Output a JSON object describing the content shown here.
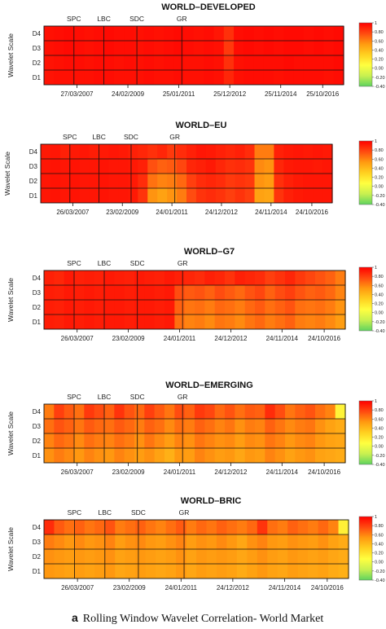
{
  "caption": {
    "label": "a",
    "text": "Rolling Window Wavelet Correlation- World Market"
  },
  "colors": {
    "scale_stops": [
      "#5fd35f",
      "#c8f050",
      "#ffff40",
      "#ffd020",
      "#ff9a10",
      "#ff4a10",
      "#ff0000"
    ]
  },
  "chart_data": [
    {
      "type": "heatmap",
      "title": "WORLD–DEVELOPED",
      "ylabel": "Wavelet Scale",
      "rows": [
        "D4",
        "D3",
        "D2",
        "D1"
      ],
      "events": [
        "SPC",
        "LBC",
        "SDC",
        "GR"
      ],
      "xticks": [
        "27/03/2007",
        "24/02/2009",
        "25/01/2011",
        "25/12/2012",
        "25/11/2014",
        "25/10/2016"
      ],
      "colorbar_ticks": [
        "1",
        "0.80",
        "0.60",
        "0.40",
        "0.20",
        "0.00",
        "-0.20",
        "-0.40"
      ],
      "values": [
        [
          0.95,
          0.96,
          0.97,
          0.96,
          0.95,
          0.96,
          0.97,
          0.96,
          0.96,
          0.95,
          0.96,
          0.95,
          0.96,
          0.97,
          0.96,
          0.95,
          0.96,
          0.93,
          0.85,
          0.96,
          0.97,
          0.96,
          0.97,
          0.96,
          0.97,
          0.97,
          0.96,
          0.97,
          0.96,
          0.97
        ],
        [
          0.95,
          0.96,
          0.97,
          0.96,
          0.95,
          0.96,
          0.97,
          0.96,
          0.96,
          0.95,
          0.96,
          0.95,
          0.96,
          0.97,
          0.96,
          0.95,
          0.96,
          0.95,
          0.82,
          0.96,
          0.97,
          0.96,
          0.97,
          0.96,
          0.97,
          0.97,
          0.96,
          0.97,
          0.96,
          0.97
        ],
        [
          0.94,
          0.95,
          0.96,
          0.96,
          0.95,
          0.96,
          0.96,
          0.95,
          0.96,
          0.95,
          0.96,
          0.95,
          0.96,
          0.96,
          0.95,
          0.95,
          0.96,
          0.95,
          0.85,
          0.95,
          0.96,
          0.96,
          0.96,
          0.96,
          0.97,
          0.96,
          0.96,
          0.96,
          0.96,
          0.97
        ],
        [
          0.94,
          0.95,
          0.95,
          0.95,
          0.95,
          0.96,
          0.96,
          0.95,
          0.95,
          0.95,
          0.96,
          0.95,
          0.95,
          0.96,
          0.95,
          0.95,
          0.96,
          0.95,
          0.88,
          0.95,
          0.96,
          0.96,
          0.96,
          0.95,
          0.96,
          0.96,
          0.96,
          0.96,
          0.95,
          0.96
        ]
      ]
    },
    {
      "type": "heatmap",
      "title": "WORLD–EU",
      "ylabel": "Wavelet Scale",
      "rows": [
        "D4",
        "D3",
        "D2",
        "D1"
      ],
      "events": [
        "SPC",
        "LBC",
        "SDC",
        "GR"
      ],
      "xticks": [
        "26/03/2007",
        "23/02/2009",
        "24/01/2011",
        "24/12/2012",
        "24/11/2014",
        "24/10/2016"
      ],
      "colorbar_ticks": [
        "1",
        "0.80",
        "0.60",
        "0.40",
        "0.20",
        "0.00",
        "-0.20",
        "-0.40"
      ],
      "values": [
        [
          0.92,
          0.93,
          0.9,
          0.92,
          0.93,
          0.91,
          0.92,
          0.93,
          0.92,
          0.9,
          0.88,
          0.85,
          0.88,
          0.82,
          0.86,
          0.9,
          0.93,
          0.92,
          0.9,
          0.88,
          0.9,
          0.86,
          0.62,
          0.62,
          0.9,
          0.92,
          0.93,
          0.92,
          0.93,
          0.92
        ],
        [
          0.93,
          0.94,
          0.93,
          0.94,
          0.93,
          0.93,
          0.94,
          0.93,
          0.93,
          0.92,
          0.9,
          0.75,
          0.7,
          0.72,
          0.78,
          0.88,
          0.9,
          0.92,
          0.88,
          0.85,
          0.86,
          0.84,
          0.58,
          0.55,
          0.88,
          0.92,
          0.93,
          0.93,
          0.92,
          0.93
        ],
        [
          0.93,
          0.94,
          0.93,
          0.94,
          0.93,
          0.93,
          0.94,
          0.93,
          0.93,
          0.92,
          0.86,
          0.65,
          0.6,
          0.62,
          0.68,
          0.8,
          0.86,
          0.88,
          0.86,
          0.82,
          0.84,
          0.82,
          0.55,
          0.52,
          0.85,
          0.9,
          0.92,
          0.93,
          0.93,
          0.93
        ],
        [
          0.93,
          0.94,
          0.93,
          0.94,
          0.93,
          0.93,
          0.94,
          0.93,
          0.93,
          0.92,
          0.84,
          0.55,
          0.5,
          0.55,
          0.62,
          0.76,
          0.84,
          0.86,
          0.84,
          0.8,
          0.84,
          0.8,
          0.5,
          0.48,
          0.84,
          0.9,
          0.92,
          0.93,
          0.93,
          0.93
        ]
      ]
    },
    {
      "type": "heatmap",
      "title": "WORLD–G7",
      "ylabel": "Wavelet Scale",
      "rows": [
        "D4",
        "D3",
        "D2",
        "D1"
      ],
      "events": [
        "SPC",
        "LBC",
        "SDC",
        "GR"
      ],
      "xticks": [
        "26/03/2007",
        "23/02/2009",
        "24/01/2011",
        "24/12/2012",
        "24/11/2014",
        "24/10/2016"
      ],
      "colorbar_ticks": [
        "1",
        "0.80",
        "0.60",
        "0.40",
        "0.20",
        "0.00",
        "-0.20",
        "-0.40"
      ],
      "values": [
        [
          0.9,
          0.88,
          0.92,
          0.9,
          0.91,
          0.9,
          0.92,
          0.91,
          0.9,
          0.92,
          0.91,
          0.9,
          0.92,
          0.9,
          0.88,
          0.86,
          0.9,
          0.88,
          0.84,
          0.9,
          0.88,
          0.86,
          0.8,
          0.84,
          0.88,
          0.82,
          0.78,
          0.74,
          0.7,
          0.62
        ],
        [
          0.91,
          0.9,
          0.92,
          0.91,
          0.92,
          0.91,
          0.92,
          0.92,
          0.91,
          0.92,
          0.92,
          0.91,
          0.92,
          0.76,
          0.72,
          0.74,
          0.7,
          0.76,
          0.72,
          0.68,
          0.74,
          0.78,
          0.7,
          0.76,
          0.8,
          0.74,
          0.7,
          0.72,
          0.68,
          0.6
        ],
        [
          0.91,
          0.9,
          0.92,
          0.91,
          0.92,
          0.91,
          0.92,
          0.92,
          0.91,
          0.92,
          0.92,
          0.91,
          0.92,
          0.7,
          0.64,
          0.66,
          0.62,
          0.68,
          0.66,
          0.62,
          0.68,
          0.72,
          0.66,
          0.7,
          0.74,
          0.66,
          0.64,
          0.66,
          0.62,
          0.55
        ],
        [
          0.91,
          0.9,
          0.92,
          0.91,
          0.92,
          0.91,
          0.92,
          0.92,
          0.91,
          0.92,
          0.92,
          0.91,
          0.92,
          0.66,
          0.6,
          0.62,
          0.58,
          0.64,
          0.62,
          0.58,
          0.64,
          0.68,
          0.62,
          0.66,
          0.7,
          0.62,
          0.6,
          0.62,
          0.58,
          0.52
        ]
      ]
    },
    {
      "type": "heatmap",
      "title": "WORLD–EMERGING",
      "ylabel": "Wavelet Scale",
      "rows": [
        "D4",
        "D3",
        "D2",
        "D1"
      ],
      "events": [
        "SPC",
        "LBC",
        "SDC",
        "GR"
      ],
      "xticks": [
        "26/03/2007",
        "23/02/2009",
        "24/01/2011",
        "24/12/2012",
        "24/11/2014",
        "24/10/2016"
      ],
      "colorbar_ticks": [
        "1",
        "0.80",
        "0.60",
        "0.40",
        "0.20",
        "0.00",
        "-0.20",
        "-0.40"
      ],
      "values": [
        [
          0.62,
          0.8,
          0.72,
          0.66,
          0.82,
          0.76,
          0.7,
          0.84,
          0.74,
          0.68,
          0.8,
          0.72,
          0.64,
          0.76,
          0.7,
          0.82,
          0.78,
          0.68,
          0.74,
          0.66,
          0.72,
          0.7,
          0.86,
          0.76,
          0.64,
          0.7,
          0.74,
          0.66,
          0.6,
          0.12
        ],
        [
          0.66,
          0.74,
          0.7,
          0.64,
          0.72,
          0.68,
          0.66,
          0.72,
          0.68,
          0.62,
          0.7,
          0.66,
          0.58,
          0.66,
          0.62,
          0.7,
          0.66,
          0.6,
          0.64,
          0.56,
          0.62,
          0.6,
          0.7,
          0.64,
          0.58,
          0.62,
          0.64,
          0.56,
          0.5,
          0.46
        ],
        [
          0.6,
          0.68,
          0.64,
          0.58,
          0.66,
          0.62,
          0.6,
          0.66,
          0.62,
          0.56,
          0.64,
          0.58,
          0.52,
          0.6,
          0.56,
          0.64,
          0.6,
          0.56,
          0.58,
          0.52,
          0.58,
          0.56,
          0.64,
          0.6,
          0.54,
          0.58,
          0.6,
          0.54,
          0.5,
          0.48
        ],
        [
          0.56,
          0.62,
          0.58,
          0.54,
          0.6,
          0.56,
          0.54,
          0.6,
          0.56,
          0.52,
          0.56,
          0.5,
          0.44,
          0.54,
          0.52,
          0.6,
          0.56,
          0.52,
          0.54,
          0.48,
          0.54,
          0.52,
          0.6,
          0.56,
          0.5,
          0.54,
          0.56,
          0.5,
          0.48,
          0.46
        ]
      ]
    },
    {
      "type": "heatmap",
      "title": "WORLD–BRIC",
      "ylabel": "Wavelet Scale",
      "rows": [
        "D4",
        "D3",
        "D2",
        "D1"
      ],
      "events": [
        "SPC",
        "LBC",
        "SDC",
        "GR"
      ],
      "xticks": [
        "26/03/2007",
        "23/02/2009",
        "24/01/2011",
        "24/12/2012",
        "24/11/2014",
        "24/10/2016"
      ],
      "colorbar_ticks": [
        "1",
        "0.80",
        "0.60",
        "0.40",
        "0.20",
        "0.00",
        "-0.20",
        "-0.40"
      ],
      "values": [
        [
          0.86,
          0.72,
          0.66,
          0.7,
          0.64,
          0.68,
          0.74,
          0.62,
          0.66,
          0.7,
          0.64,
          0.6,
          0.66,
          0.72,
          0.62,
          0.68,
          0.64,
          0.7,
          0.66,
          0.62,
          0.68,
          0.84,
          0.66,
          0.62,
          0.7,
          0.66,
          0.62,
          0.68,
          0.6,
          0.14
        ],
        [
          0.62,
          0.58,
          0.54,
          0.58,
          0.54,
          0.56,
          0.6,
          0.52,
          0.56,
          0.58,
          0.54,
          0.52,
          0.56,
          0.6,
          0.52,
          0.56,
          0.54,
          0.58,
          0.54,
          0.48,
          0.56,
          0.6,
          0.54,
          0.52,
          0.56,
          0.54,
          0.52,
          0.56,
          0.5,
          0.46
        ],
        [
          0.56,
          0.54,
          0.52,
          0.54,
          0.52,
          0.54,
          0.56,
          0.5,
          0.52,
          0.54,
          0.52,
          0.5,
          0.52,
          0.56,
          0.5,
          0.54,
          0.52,
          0.54,
          0.52,
          0.48,
          0.52,
          0.56,
          0.52,
          0.5,
          0.54,
          0.52,
          0.5,
          0.52,
          0.48,
          0.46
        ],
        [
          0.54,
          0.52,
          0.5,
          0.52,
          0.5,
          0.52,
          0.54,
          0.48,
          0.5,
          0.52,
          0.5,
          0.48,
          0.5,
          0.54,
          0.48,
          0.52,
          0.5,
          0.52,
          0.5,
          0.46,
          0.5,
          0.54,
          0.5,
          0.48,
          0.52,
          0.5,
          0.48,
          0.5,
          0.46,
          0.44
        ]
      ]
    }
  ]
}
